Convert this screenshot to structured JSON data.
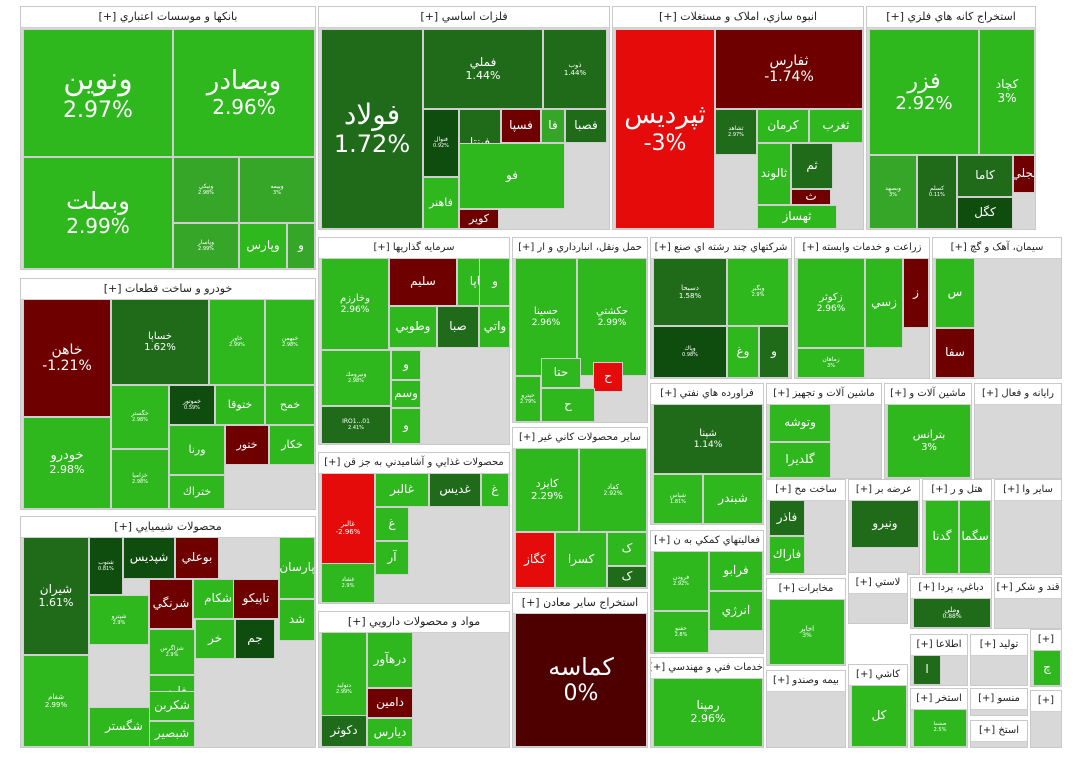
{
  "colors": {
    "strong_green": "#2eb81e",
    "green": "#35a628",
    "dark_green": "#1f6b1a",
    "deeper_green": "#0f4d0f",
    "red": "#e60b0b",
    "dark_red": "#6e0000",
    "deep_red": "#4e0000",
    "neutral": "#4a0000"
  },
  "chart_data": {
    "type": "treemap",
    "title": "",
    "sectors": [
      {
        "title": "بانکها و موسسات اعتباري [+]",
        "tiles": [
          {
            "name": "ونوين",
            "change": "2.97%"
          },
          {
            "name": "وبصادر",
            "change": "2.96%"
          },
          {
            "name": "وبملت",
            "change": "2.99%"
          },
          {
            "name": "ونيكي",
            "change": "2.98%"
          },
          {
            "name": "وبيمه",
            "change": "3%"
          },
          {
            "name": "وپارس",
            "change": ""
          },
          {
            "name": "وپاسار",
            "change": "2.99%"
          },
          {
            "name": "و",
            "change": ""
          }
        ]
      },
      {
        "title": "فلزات اساسي [+]",
        "tiles": [
          {
            "name": "فولاد",
            "change": "1.72%"
          },
          {
            "name": "فملي",
            "change": "1.44%"
          },
          {
            "name": "ذوب",
            "change": "1.44%"
          },
          {
            "name": "فنوال",
            "change": "0.92%"
          },
          {
            "name": "فپنتا",
            "change": ""
          },
          {
            "name": "فسپا",
            "change": ""
          },
          {
            "name": "فا",
            "change": ""
          },
          {
            "name": "فصبا",
            "change": ""
          },
          {
            "name": "فو",
            "change": ""
          },
          {
            "name": "فاهنر",
            "change": ""
          },
          {
            "name": "کوير",
            "change": ""
          }
        ]
      },
      {
        "title": "انبوه سازي، املاک و مستغلات [+]",
        "tiles": [
          {
            "name": "ثپرديس",
            "change": "-3%"
          },
          {
            "name": "ثفارس",
            "change": "-1.74%"
          },
          {
            "name": "ثشاهد",
            "change": "2.97%"
          },
          {
            "name": "کرمان",
            "change": ""
          },
          {
            "name": "ثغرب",
            "change": ""
          },
          {
            "name": "ثم",
            "change": ""
          },
          {
            "name": "ثالوند",
            "change": ""
          },
          {
            "name": "ث",
            "change": ""
          },
          {
            "name": "ثهساز",
            "change": ""
          }
        ]
      },
      {
        "title": "استخراج کانه هاي فلزي [+]",
        "tiles": [
          {
            "name": "فزر",
            "change": "2.92%"
          },
          {
            "name": "کچاد",
            "change": "3%"
          },
          {
            "name": "وبصهد",
            "change": "3%"
          },
          {
            "name": "کسلم",
            "change": "0.11%"
          },
          {
            "name": "کاما",
            "change": ""
          },
          {
            "name": "کگل",
            "change": ""
          },
          {
            "name": "تجلي",
            "change": ""
          }
        ]
      },
      {
        "title": "خودرو و ساخت قطعات [+]",
        "tiles": [
          {
            "name": "خاهن",
            "change": "-1.21%"
          },
          {
            "name": "خودرو",
            "change": "2.98%"
          },
          {
            "name": "خساپا",
            "change": "1.62%"
          },
          {
            "name": "خاور",
            "change": "2.99%"
          },
          {
            "name": "خبهمن",
            "change": "2.98%"
          },
          {
            "name": "خگستر",
            "change": "2.98%"
          },
          {
            "name": "خموتور",
            "change": "0.59%"
          },
          {
            "name": "ختوقا",
            "change": ""
          },
          {
            "name": "خمح",
            "change": ""
          },
          {
            "name": "خكار",
            "change": ""
          },
          {
            "name": "ختور",
            "change": ""
          },
          {
            "name": "خزاميا",
            "change": "2.98%"
          },
          {
            "name": "ورنا",
            "change": ""
          },
          {
            "name": "ختراك",
            "change": ""
          }
        ]
      },
      {
        "title": "سرمايه گذاريها [+]",
        "tiles": [
          {
            "name": "وخارزم",
            "change": "2.96%"
          },
          {
            "name": "سليم",
            "change": ""
          },
          {
            "name": "وساپا",
            "change": ""
          },
          {
            "name": "و",
            "change": ""
          },
          {
            "name": "وطوبي",
            "change": ""
          },
          {
            "name": "صبا",
            "change": ""
          },
          {
            "name": "واتي",
            "change": ""
          },
          {
            "name": "ونيرومك",
            "change": "2.98%"
          },
          {
            "name": "و",
            "change": ""
          },
          {
            "name": "وسم",
            "change": ""
          },
          {
            "name": "و",
            "change": ""
          },
          {
            "name": "IRO1...01",
            "change": "2.41%"
          }
        ]
      },
      {
        "title": "حمل ونقل، انبارداري و ار [+]",
        "tiles": [
          {
            "name": "حسينا",
            "change": "2.96%"
          },
          {
            "name": "حکشتي",
            "change": "2.99%"
          },
          {
            "name": "حتا",
            "change": ""
          },
          {
            "name": "حپترو",
            "change": "2.79%"
          },
          {
            "name": "ح",
            "change": ""
          },
          {
            "name": "ح",
            "change": ""
          }
        ]
      },
      {
        "title": "شرکتهاي چند رشته اي صنع [+]",
        "tiles": [
          {
            "name": "دسبحا",
            "change": "1.58%"
          },
          {
            "name": "وبگير",
            "change": "2.9%"
          },
          {
            "name": "وغ",
            "change": ""
          },
          {
            "name": "و",
            "change": ""
          },
          {
            "name": "وپاك",
            "change": "0.98%"
          }
        ]
      },
      {
        "title": "زراعت و خدمات وابسته [+]",
        "tiles": [
          {
            "name": "زکوثر",
            "change": "2.96%"
          },
          {
            "name": "زسي",
            "change": ""
          },
          {
            "name": "ز",
            "change": ""
          },
          {
            "name": "زماهان",
            "change": "3%"
          }
        ]
      },
      {
        "title": "سيمان، آهک و گچ [+]",
        "tiles": [
          {
            "name": "س",
            "change": ""
          },
          {
            "name": "سفا",
            "change": ""
          }
        ]
      },
      {
        "title": "فراورده هاي نفتي [+]",
        "tiles": [
          {
            "name": "شپنا",
            "change": "1.14%"
          },
          {
            "name": "شبندر",
            "change": ""
          },
          {
            "name": "شپاس",
            "change": "1.81%"
          }
        ]
      },
      {
        "title": "ماشين آلات و تجهيز [+]",
        "tiles": [
          {
            "name": "وتوشه",
            "change": ""
          },
          {
            "name": "گلديرا",
            "change": ""
          }
        ]
      },
      {
        "title": "ماشين آلات و [+]",
        "tiles": [
          {
            "name": "بترانس",
            "change": "3%"
          }
        ]
      },
      {
        "title": "رايانه و فعال [+]",
        "tiles": []
      },
      {
        "title": "ساير محصولات کاني غير [+]",
        "tiles": [
          {
            "name": "کايزد",
            "change": "2.29%"
          },
          {
            "name": "کفاد",
            "change": "2.92%"
          },
          {
            "name": "کگاز",
            "change": ""
          },
          {
            "name": "کسرا",
            "change": ""
          },
          {
            "name": "ک",
            "change": ""
          },
          {
            "name": "ک",
            "change": ""
          }
        ]
      },
      {
        "title": "ساخت مح [+]",
        "tiles": [
          {
            "name": "فاذر",
            "change": ""
          },
          {
            "name": "فاراك",
            "change": ""
          }
        ]
      },
      {
        "title": "عرضه بر [+]",
        "tiles": [
          {
            "name": "ونيرو",
            "change": ""
          }
        ]
      },
      {
        "title": "هتل و ر [+]",
        "tiles": [
          {
            "name": "گدنا",
            "change": ""
          },
          {
            "name": "سگما",
            "change": ""
          }
        ]
      },
      {
        "title": "ساير وا [+]",
        "tiles": []
      },
      {
        "title": "محصولات غذايي و آشاميدني به جز قن [+]",
        "tiles": [
          {
            "name": "غالبر",
            "change": "-2.96%"
          },
          {
            "name": "غالبر",
            "change": ""
          },
          {
            "name": "غديس",
            "change": ""
          },
          {
            "name": "غ",
            "change": ""
          },
          {
            "name": "غ",
            "change": ""
          },
          {
            "name": "آر",
            "change": ""
          },
          {
            "name": "غشاد",
            "change": "2.9%"
          }
        ]
      },
      {
        "title": "فعاليتهاي کمکي به ن [+]",
        "tiles": [
          {
            "name": "فرابو",
            "change": ""
          },
          {
            "name": "فرودن",
            "change": "2.92%"
          },
          {
            "name": "انرژي",
            "change": ""
          },
          {
            "name": "حفنو",
            "change": "2.8%"
          }
        ]
      },
      {
        "title": "محصولات شيميايي [+]",
        "tiles": [
          {
            "name": "شيران",
            "change": "1.61%"
          },
          {
            "name": "شفام",
            "change": "2.99%"
          },
          {
            "name": "شگستر",
            "change": ""
          },
          {
            "name": "شتوب",
            "change": "0.81%"
          },
          {
            "name": "شپديس",
            "change": ""
          },
          {
            "name": "بوعلي",
            "change": ""
          },
          {
            "name": "شپترو",
            "change": "2.9%"
          },
          {
            "name": "شرنگي",
            "change": ""
          },
          {
            "name": "شكام",
            "change": ""
          },
          {
            "name": "تاپيكو",
            "change": ""
          },
          {
            "name": "پارسان",
            "change": ""
          },
          {
            "name": "شد",
            "change": ""
          },
          {
            "name": "شزاگرس",
            "change": "2.9%"
          },
          {
            "name": "فارس",
            "change": ""
          },
          {
            "name": "جم",
            "change": ""
          },
          {
            "name": "خر",
            "change": ""
          },
          {
            "name": "شكربن",
            "change": ""
          },
          {
            "name": "شبصير",
            "change": ""
          }
        ]
      },
      {
        "title": "مواد و محصولات دارويي [+]",
        "tiles": [
          {
            "name": "دتوليد",
            "change": "2.99%"
          },
          {
            "name": "درهآور",
            "change": ""
          },
          {
            "name": "دامين",
            "change": ""
          },
          {
            "name": "دکوثر",
            "change": ""
          },
          {
            "name": "ديارس",
            "change": ""
          }
        ]
      },
      {
        "title": "استخراج ساير معادن [+]",
        "tiles": [
          {
            "name": "کماسه",
            "change": "0%"
          }
        ]
      },
      {
        "title": "مخابرات [+]",
        "tiles": [
          {
            "name": "اخابر",
            "change": "3%"
          }
        ]
      },
      {
        "title": "خدمات فني و مهندسي [+]",
        "tiles": [
          {
            "name": "رمپنا",
            "change": "2.96%"
          }
        ]
      },
      {
        "title": "بيمه وصندو [+]",
        "tiles": []
      },
      {
        "title": "لاستي [+]",
        "tiles": []
      },
      {
        "title": "دباغي، پردا [+]",
        "tiles": [
          {
            "name": "وملي",
            "change": "0.88%"
          }
        ]
      },
      {
        "title": "قند و شکر [+]",
        "tiles": []
      },
      {
        "title": "کاشي [+]",
        "tiles": [
          {
            "name": "کل",
            "change": ""
          }
        ]
      },
      {
        "title": "اطلاعا [+]",
        "tiles": [
          {
            "name": "ا",
            "change": ""
          }
        ]
      },
      {
        "title": "توليد [+]",
        "tiles": []
      },
      {
        "title": "منسو [+]",
        "tiles": []
      },
      {
        "title": "استخر [+]",
        "tiles": [
          {
            "name": "ضشما",
            "change": "2.5%"
          }
        ]
      },
      {
        "title": "استخ [+]",
        "tiles": []
      },
      {
        "title": "[+]",
        "tiles": [
          {
            "name": "چ",
            "change": ""
          }
        ]
      },
      {
        "title": "[+]",
        "tiles": []
      }
    ]
  }
}
